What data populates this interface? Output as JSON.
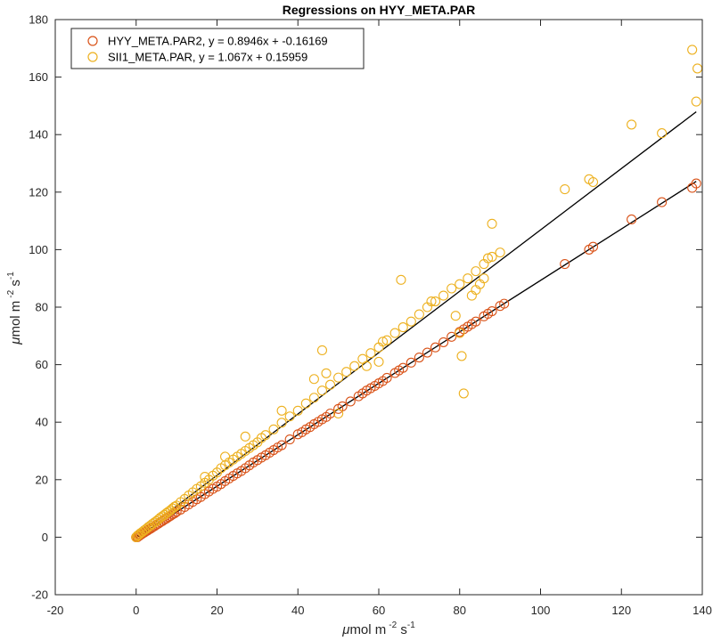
{
  "chart_data": {
    "type": "scatter",
    "title": "Regressions on HYY_META.PAR",
    "xlabel": {
      "unit": "mol m",
      "exp1": "-2",
      "mid": " s",
      "exp2": "-1"
    },
    "ylabel": {
      "unit": "mol m",
      "exp1": "-2",
      "mid": " s",
      "exp2": "-1"
    },
    "xlim": [
      -20,
      140
    ],
    "ylim": [
      -20,
      180
    ],
    "xticks": [
      "-20",
      "0",
      "20",
      "40",
      "60",
      "80",
      "100",
      "120",
      "140"
    ],
    "yticks": [
      "-20",
      "0",
      "20",
      "40",
      "60",
      "80",
      "100",
      "120",
      "140",
      "160",
      "180"
    ],
    "grid": false,
    "legend_position": "top-left",
    "series": [
      {
        "name": "HYY_META.PAR2, y = 0.8946x + -0.16169",
        "color": "#D95319",
        "marker": "open-circle",
        "fit": {
          "slope": 0.8946,
          "intercept": -0.16169,
          "x_range": [
            0,
            138.5
          ]
        },
        "points": [
          [
            0,
            0
          ],
          [
            0.3,
            0
          ],
          [
            0.5,
            0.3
          ],
          [
            0.8,
            0.5
          ],
          [
            1,
            0.8
          ],
          [
            1.3,
            1
          ],
          [
            1.6,
            1.3
          ],
          [
            2,
            1.6
          ],
          [
            2.4,
            2
          ],
          [
            2.8,
            2.3
          ],
          [
            3.2,
            2.7
          ],
          [
            3.6,
            3
          ],
          [
            4,
            3.4
          ],
          [
            4.5,
            3.8
          ],
          [
            5,
            4.3
          ],
          [
            5.5,
            4.7
          ],
          [
            6,
            5.2
          ],
          [
            6.5,
            5.6
          ],
          [
            7,
            6.1
          ],
          [
            7.5,
            6.5
          ],
          [
            8,
            7
          ],
          [
            8.5,
            7.4
          ],
          [
            9,
            7.9
          ],
          [
            9.5,
            8.3
          ],
          [
            10,
            8.8
          ],
          [
            11,
            9.6
          ],
          [
            12,
            10.5
          ],
          [
            13,
            11.4
          ],
          [
            14,
            12.3
          ],
          [
            15,
            13.2
          ],
          [
            16,
            14
          ],
          [
            17,
            15
          ],
          [
            18,
            15.9
          ],
          [
            19,
            16.8
          ],
          [
            20,
            17.6
          ],
          [
            21,
            18.5
          ],
          [
            22,
            19.5
          ],
          [
            23,
            20.4
          ],
          [
            24,
            21.3
          ],
          [
            25,
            22.2
          ],
          [
            26,
            23
          ],
          [
            27,
            24
          ],
          [
            28,
            25
          ],
          [
            29,
            26
          ],
          [
            30,
            26.8
          ],
          [
            31,
            27.7
          ],
          [
            32,
            28.5
          ],
          [
            33,
            29.4
          ],
          [
            34,
            30.3
          ],
          [
            35,
            31.2
          ],
          [
            36,
            32
          ],
          [
            38,
            34
          ],
          [
            40,
            35.8
          ],
          [
            41,
            36.5
          ],
          [
            42,
            37.5
          ],
          [
            43,
            38.3
          ],
          [
            44,
            39.3
          ],
          [
            45,
            40.1
          ],
          [
            46,
            41
          ],
          [
            47,
            41.8
          ],
          [
            48,
            43
          ],
          [
            50,
            44.6
          ],
          [
            51,
            45.5
          ],
          [
            53,
            47.2
          ],
          [
            55,
            49
          ],
          [
            56,
            50
          ],
          [
            57,
            51
          ],
          [
            58,
            51.8
          ],
          [
            59,
            52.6
          ],
          [
            60,
            53.5
          ],
          [
            61,
            54.3
          ],
          [
            62,
            55.4
          ],
          [
            64,
            57.1
          ],
          [
            65,
            58
          ],
          [
            66,
            58.9
          ],
          [
            68,
            60.7
          ],
          [
            70,
            62.5
          ],
          [
            72,
            64.2
          ],
          [
            74,
            66
          ],
          [
            76,
            67.8
          ],
          [
            78,
            69.7
          ],
          [
            80,
            71.4
          ],
          [
            81,
            72.3
          ],
          [
            82,
            73.2
          ],
          [
            83,
            74.1
          ],
          [
            84,
            75
          ],
          [
            86,
            76.8
          ],
          [
            87,
            77.7
          ],
          [
            88,
            78.6
          ],
          [
            90,
            80.4
          ],
          [
            91,
            81.2
          ],
          [
            106,
            95
          ],
          [
            112,
            100
          ],
          [
            113,
            101
          ],
          [
            122.5,
            110.5
          ],
          [
            130,
            116.5
          ],
          [
            137.5,
            121.5
          ],
          [
            138.5,
            123
          ]
        ]
      },
      {
        "name": "SII1_META.PAR, y = 1.067x + 0.15959",
        "color": "#EDB120",
        "marker": "open-circle",
        "fit": {
          "slope": 1.067,
          "intercept": 0.15959,
          "x_range": [
            0,
            138.5
          ]
        },
        "points": [
          [
            0,
            0
          ],
          [
            0.3,
            0.5
          ],
          [
            0.6,
            0.8
          ],
          [
            1,
            1.3
          ],
          [
            1.5,
            1.8
          ],
          [
            2,
            2.4
          ],
          [
            2.5,
            2.9
          ],
          [
            3,
            3.5
          ],
          [
            3.5,
            4
          ],
          [
            4,
            4.6
          ],
          [
            4.5,
            5.1
          ],
          [
            5,
            5.6
          ],
          [
            5.5,
            6.2
          ],
          [
            6,
            6.8
          ],
          [
            6.5,
            7.3
          ],
          [
            7,
            7.8
          ],
          [
            7.5,
            8.4
          ],
          [
            8,
            8.9
          ],
          [
            8.5,
            9.4
          ],
          [
            9,
            10
          ],
          [
            9.5,
            10.6
          ],
          [
            10,
            11
          ],
          [
            11,
            12.2
          ],
          [
            12,
            13.3
          ],
          [
            13,
            14.5
          ],
          [
            14,
            15.6
          ],
          [
            15,
            16.8
          ],
          [
            16,
            17.7
          ],
          [
            17,
            18.9
          ],
          [
            18,
            20
          ],
          [
            19,
            21.4
          ],
          [
            20,
            22.5
          ],
          [
            21,
            24
          ],
          [
            22,
            25
          ],
          [
            23,
            26
          ],
          [
            24,
            27
          ],
          [
            25,
            28
          ],
          [
            26,
            29
          ],
          [
            27,
            30
          ],
          [
            28,
            31
          ],
          [
            29,
            32
          ],
          [
            30,
            33
          ],
          [
            31,
            34.5
          ],
          [
            32,
            35.5
          ],
          [
            34,
            37.5
          ],
          [
            36,
            39.8
          ],
          [
            38,
            42
          ],
          [
            40,
            44
          ],
          [
            42,
            46.5
          ],
          [
            44,
            48.5
          ],
          [
            46,
            51
          ],
          [
            48,
            53
          ],
          [
            50,
            55.5
          ],
          [
            52,
            57.5
          ],
          [
            54,
            59.5
          ],
          [
            56,
            62
          ],
          [
            58,
            64
          ],
          [
            60,
            66
          ],
          [
            62,
            68.5
          ],
          [
            64,
            71
          ],
          [
            66,
            73
          ],
          [
            68,
            75
          ],
          [
            70,
            77.5
          ],
          [
            72,
            80
          ],
          [
            74,
            82
          ],
          [
            76,
            84
          ],
          [
            78,
            86.5
          ],
          [
            80,
            88
          ],
          [
            82,
            90
          ],
          [
            84,
            92.5
          ],
          [
            86,
            95
          ],
          [
            88,
            97.5
          ],
          [
            90,
            99
          ],
          [
            17,
            21
          ],
          [
            22,
            28
          ],
          [
            27,
            35
          ],
          [
            36,
            44
          ],
          [
            44,
            55
          ],
          [
            46,
            65
          ],
          [
            47,
            57
          ],
          [
            50,
            43
          ],
          [
            57,
            59.5
          ],
          [
            60,
            61
          ],
          [
            61,
            68
          ],
          [
            65.5,
            89.5
          ],
          [
            73,
            82
          ],
          [
            79,
            77
          ],
          [
            80,
            71
          ],
          [
            80.5,
            63
          ],
          [
            81,
            50
          ],
          [
            83,
            84
          ],
          [
            84,
            86
          ],
          [
            85,
            88
          ],
          [
            86,
            90
          ],
          [
            87,
            97
          ],
          [
            88,
            109
          ],
          [
            106,
            121
          ],
          [
            112,
            124.5
          ],
          [
            113,
            123.5
          ],
          [
            122.5,
            143.5
          ],
          [
            130,
            140.5
          ],
          [
            137.5,
            169.5
          ],
          [
            138.5,
            151.5
          ],
          [
            138.8,
            163
          ]
        ]
      }
    ]
  }
}
